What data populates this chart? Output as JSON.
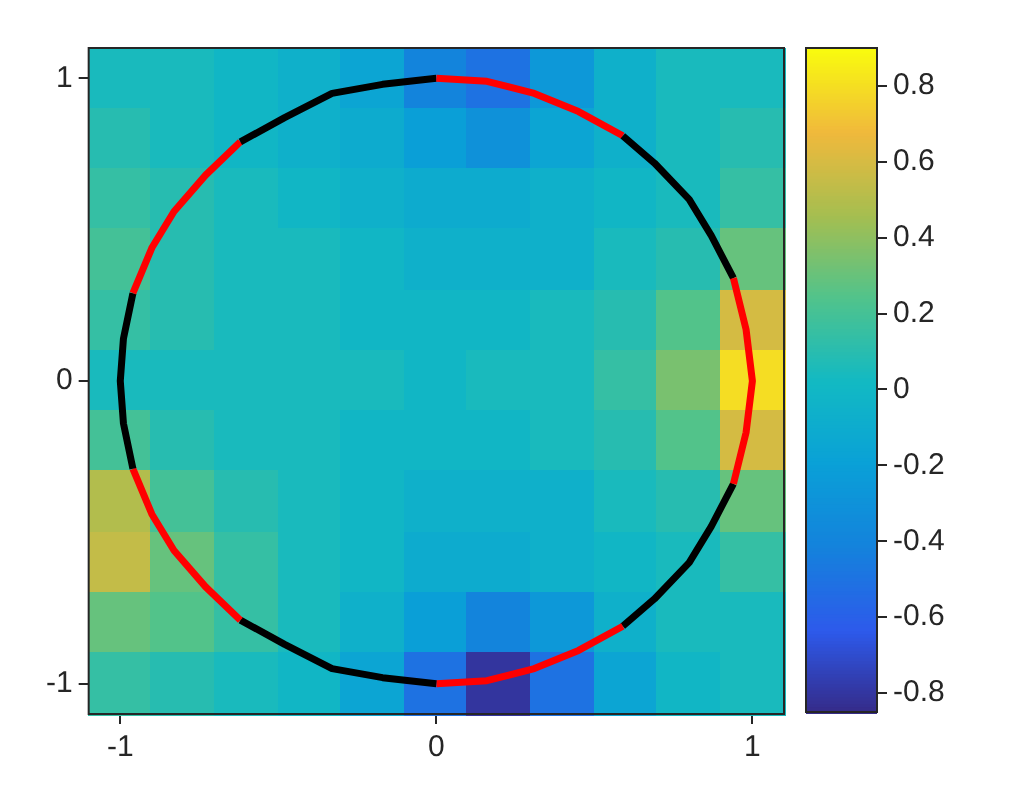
{
  "chart_data": {
    "type": "heatmap",
    "x": [
      -1,
      -0.8,
      -0.6,
      -0.4,
      -0.2,
      0,
      0.2,
      0.4,
      0.6,
      0.8,
      1
    ],
    "xlim": [
      -1.1,
      1.1
    ],
    "ylim": [
      -1.1,
      1.1
    ],
    "xticks": [
      -1,
      0,
      1
    ],
    "yticks": [
      -1,
      0,
      1
    ],
    "clim": [
      -0.85,
      0.9
    ],
    "cticks": [
      -0.8,
      -0.6,
      -0.4,
      -0.2,
      0,
      0.2,
      0.4,
      0.6,
      0.8
    ],
    "legend": false,
    "cells": [
      [
        0.05,
        0.05,
        0.0,
        -0.05,
        -0.15,
        -0.4,
        -0.5,
        -0.25,
        -0.05,
        0.05,
        0.05
      ],
      [
        0.1,
        0.05,
        0.0,
        -0.05,
        -0.1,
        -0.2,
        -0.3,
        -0.15,
        -0.05,
        0.05,
        0.1
      ],
      [
        0.15,
        0.1,
        0.05,
        0,
        -0.05,
        -0.1,
        -0.1,
        -0.05,
        0,
        0.05,
        0.15
      ],
      [
        0.2,
        0.1,
        0.05,
        0.05,
        0,
        -0.05,
        -0.05,
        -0.05,
        0.05,
        0.1,
        0.3
      ],
      [
        0.15,
        0.1,
        0.05,
        0.05,
        0,
        0,
        0,
        0.05,
        0.1,
        0.25,
        0.6
      ],
      [
        0.05,
        0.05,
        0.05,
        0.05,
        0.05,
        0,
        0.05,
        0.05,
        0.15,
        0.35,
        0.8
      ],
      [
        0.2,
        0.1,
        0.05,
        0.05,
        0,
        0,
        0,
        0.05,
        0.1,
        0.25,
        0.6
      ],
      [
        0.5,
        0.2,
        0.1,
        0.05,
        0,
        -0.05,
        -0.05,
        -0.05,
        0.05,
        0.1,
        0.3
      ],
      [
        0.55,
        0.3,
        0.15,
        0.05,
        0,
        -0.1,
        -0.1,
        -0.05,
        0,
        0.05,
        0.15
      ],
      [
        0.3,
        0.25,
        0.15,
        0.05,
        -0.05,
        -0.2,
        -0.4,
        -0.25,
        -0.05,
        0.05,
        0.05
      ],
      [
        0.15,
        0.1,
        0.05,
        0,
        -0.15,
        -0.5,
        -0.8,
        -0.5,
        -0.15,
        0,
        0.05
      ]
    ],
    "series": [
      {
        "type": "line",
        "color": "#ff0000",
        "x": [
          0.94,
          0.98,
          1,
          0.98,
          0.94
        ],
        "values": [
          -0.34,
          -0.17,
          0,
          0.17,
          0.34
        ]
      },
      {
        "type": "line",
        "color": "#000000",
        "x": [
          0.94,
          0.87,
          0.8,
          0.69,
          0.59
        ],
        "values": [
          0.34,
          0.48,
          0.6,
          0.72,
          0.81
        ]
      },
      {
        "type": "line",
        "color": "#ff0000",
        "x": [
          0.59,
          0.45,
          0.31,
          0.16,
          0
        ],
        "values": [
          0.81,
          0.89,
          0.95,
          0.99,
          1
        ]
      },
      {
        "type": "line",
        "color": "#000000",
        "x": [
          0,
          -0.17,
          -0.33,
          -0.48,
          -0.62
        ],
        "values": [
          1,
          0.98,
          0.95,
          0.87,
          0.79
        ]
      },
      {
        "type": "line",
        "color": "#ff0000",
        "x": [
          -0.62,
          -0.73,
          -0.83,
          -0.9,
          -0.96
        ],
        "values": [
          0.79,
          0.68,
          0.56,
          0.44,
          0.29
        ]
      },
      {
        "type": "line",
        "color": "#000000",
        "x": [
          -0.96,
          -0.99,
          -1,
          -0.99,
          -0.96
        ],
        "values": [
          0.29,
          0.14,
          0,
          -0.14,
          -0.29
        ]
      },
      {
        "type": "line",
        "color": "#ff0000",
        "x": [
          -0.96,
          -0.9,
          -0.83,
          -0.73,
          -0.62
        ],
        "values": [
          -0.29,
          -0.44,
          -0.56,
          -0.68,
          -0.79
        ]
      },
      {
        "type": "line",
        "color": "#000000",
        "x": [
          -0.62,
          -0.48,
          -0.33,
          -0.17,
          0
        ],
        "values": [
          -0.79,
          -0.87,
          -0.95,
          -0.98,
          -1
        ]
      },
      {
        "type": "line",
        "color": "#ff0000",
        "x": [
          0,
          0.16,
          0.31,
          0.45,
          0.59
        ],
        "values": [
          -1,
          -0.99,
          -0.95,
          -0.89,
          -0.81
        ]
      },
      {
        "type": "line",
        "color": "#000000",
        "x": [
          0.59,
          0.69,
          0.8,
          0.87,
          0.94
        ],
        "values": [
          -0.81,
          -0.72,
          -0.6,
          -0.48,
          -0.34
        ]
      }
    ]
  }
}
